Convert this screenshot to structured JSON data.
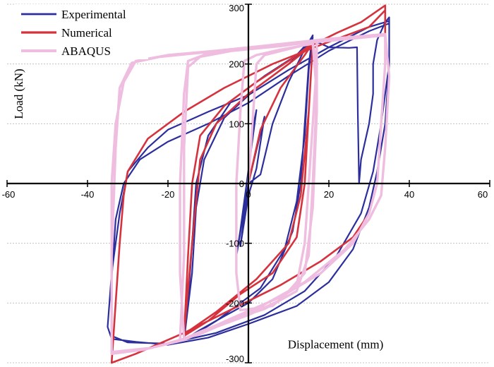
{
  "chart_data": {
    "type": "line",
    "xlabel": "Displacement (mm)",
    "ylabel": "Load (kN)",
    "xlim": [
      -60,
      60
    ],
    "ylim": [
      -300,
      300
    ],
    "x_ticks": [
      -60,
      -40,
      -20,
      0,
      20,
      40,
      60
    ],
    "y_ticks": [
      -300,
      -200,
      -100,
      0,
      100,
      200,
      300
    ],
    "x_tick_labels": [
      "-60",
      "-40",
      "-20",
      "0",
      "20",
      "40",
      "60"
    ],
    "y_tick_labels": [
      "-300",
      "-200",
      "-100",
      "0",
      "100",
      "200",
      "300"
    ],
    "grid": "horizontal dashed",
    "legend_position": "top-left",
    "series": [
      {
        "name": "Experimental",
        "color": "#2b2e9c",
        "width": 2.2,
        "points": [
          [
            0,
            0
          ],
          [
            1,
            90
          ],
          [
            2,
            123
          ],
          [
            -2,
            -78
          ],
          [
            -3,
            -122
          ],
          [
            0,
            0
          ],
          [
            4,
            112
          ],
          [
            2,
            25
          ],
          [
            0,
            -20
          ],
          [
            -2,
            -105
          ],
          [
            0,
            0
          ],
          [
            3,
            15
          ],
          [
            6,
            100
          ],
          [
            10,
            170
          ],
          [
            14,
            225
          ],
          [
            16,
            248
          ],
          [
            15,
            200
          ],
          [
            14,
            100
          ],
          [
            13,
            0
          ],
          [
            11,
            -80
          ],
          [
            6,
            -160
          ],
          [
            0,
            -200
          ],
          [
            -6,
            -222
          ],
          [
            -12,
            -245
          ],
          [
            -16,
            -262
          ],
          [
            -15,
            -200
          ],
          [
            -14,
            -100
          ],
          [
            -13,
            0
          ],
          [
            -10,
            80
          ],
          [
            -4,
            140
          ],
          [
            4,
            180
          ],
          [
            12,
            215
          ],
          [
            16,
            245
          ],
          [
            15,
            190
          ],
          [
            14,
            80
          ],
          [
            12,
            -30
          ],
          [
            9,
            -110
          ],
          [
            3,
            -175
          ],
          [
            -8,
            -230
          ],
          [
            -14,
            -255
          ],
          [
            -16,
            -262
          ],
          [
            -14,
            -150
          ],
          [
            -13,
            -40
          ],
          [
            -11,
            40
          ],
          [
            -6,
            110
          ],
          [
            2,
            160
          ],
          [
            10,
            200
          ],
          [
            16,
            240
          ],
          [
            20,
            228
          ],
          [
            25,
            227
          ],
          [
            27,
            228
          ],
          [
            27.2,
            120
          ],
          [
            27.5,
            0
          ],
          [
            28,
            40
          ],
          [
            30,
            100
          ],
          [
            31,
            150
          ],
          [
            31,
            200
          ],
          [
            32,
            240
          ],
          [
            34,
            270
          ],
          [
            35,
            278
          ],
          [
            35,
            200
          ],
          [
            34,
            100
          ],
          [
            32,
            20
          ],
          [
            30,
            -40
          ],
          [
            26,
            -110
          ],
          [
            20,
            -165
          ],
          [
            12,
            -205
          ],
          [
            0,
            -235
          ],
          [
            -10,
            -258
          ],
          [
            -20,
            -270
          ],
          [
            -28,
            -265
          ],
          [
            -34,
            -260
          ],
          [
            -35,
            -240
          ],
          [
            -34,
            -150
          ],
          [
            -32,
            -50
          ],
          [
            -30,
            20
          ],
          [
            -25,
            60
          ],
          [
            -20,
            90
          ],
          [
            -10,
            120
          ],
          [
            0,
            148
          ],
          [
            10,
            190
          ],
          [
            20,
            228
          ],
          [
            30,
            262
          ],
          [
            35,
            272
          ],
          [
            35,
            200
          ],
          [
            33,
            100
          ],
          [
            31,
            20
          ],
          [
            28,
            -50
          ],
          [
            22,
            -120
          ],
          [
            14,
            -180
          ],
          [
            4,
            -220
          ],
          [
            -8,
            -250
          ],
          [
            -20,
            -268
          ],
          [
            -30,
            -266
          ],
          [
            -34,
            -255
          ],
          [
            -34,
            -160
          ],
          [
            -33,
            -60
          ],
          [
            -31,
            0
          ],
          [
            -27,
            40
          ],
          [
            -20,
            70
          ],
          [
            -10,
            100
          ],
          [
            0,
            135
          ],
          [
            10,
            180
          ],
          [
            20,
            222
          ],
          [
            30,
            255
          ],
          [
            35,
            268
          ]
        ]
      },
      {
        "name": "Numerical",
        "color": "#d6323e",
        "width": 2.6,
        "points": [
          [
            0,
            0
          ],
          [
            3,
            90
          ],
          [
            8,
            160
          ],
          [
            14,
            215
          ],
          [
            16,
            235
          ],
          [
            15,
            120
          ],
          [
            14,
            0
          ],
          [
            12,
            -90
          ],
          [
            6,
            -150
          ],
          [
            -2,
            -185
          ],
          [
            -10,
            -230
          ],
          [
            -16,
            -255
          ],
          [
            -15,
            -120
          ],
          [
            -14,
            0
          ],
          [
            -12,
            80
          ],
          [
            -6,
            130
          ],
          [
            2,
            170
          ],
          [
            10,
            205
          ],
          [
            16,
            235
          ],
          [
            15,
            120
          ],
          [
            13,
            -20
          ],
          [
            10,
            -100
          ],
          [
            2,
            -160
          ],
          [
            -8,
            -215
          ],
          [
            -16,
            -252
          ],
          [
            -14,
            -100
          ],
          [
            -12,
            40
          ],
          [
            -8,
            100
          ],
          [
            0,
            150
          ],
          [
            10,
            200
          ],
          [
            16,
            232
          ],
          [
            22,
            252
          ],
          [
            28,
            270
          ],
          [
            34,
            298
          ],
          [
            34,
            200
          ],
          [
            33,
            100
          ],
          [
            32,
            0
          ],
          [
            30,
            -50
          ],
          [
            26,
            -90
          ],
          [
            18,
            -130
          ],
          [
            8,
            -170
          ],
          [
            -4,
            -210
          ],
          [
            -16,
            -250
          ],
          [
            -28,
            -285
          ],
          [
            -34,
            -300
          ],
          [
            -33,
            -200
          ],
          [
            -32,
            -100
          ],
          [
            -31,
            -20
          ],
          [
            -30,
            20
          ],
          [
            -25,
            75
          ],
          [
            -16,
            120
          ],
          [
            -6,
            160
          ],
          [
            6,
            200
          ],
          [
            18,
            232
          ],
          [
            30,
            262
          ],
          [
            34,
            290
          ]
        ]
      },
      {
        "name": "ABAQUS",
        "color": "#efbddf",
        "width": 3.4,
        "points": [
          [
            0,
            0
          ],
          [
            1,
            100
          ],
          [
            2,
            200
          ],
          [
            4,
            215
          ],
          [
            10,
            225
          ],
          [
            16,
            235
          ],
          [
            17,
            200
          ],
          [
            16,
            100
          ],
          [
            15,
            0
          ],
          [
            14,
            -100
          ],
          [
            12,
            -170
          ],
          [
            6,
            -205
          ],
          [
            -2,
            -212
          ],
          [
            -3,
            -150
          ],
          [
            -3,
            0
          ],
          [
            -2,
            120
          ],
          [
            -1,
            205
          ],
          [
            2,
            215
          ],
          [
            8,
            224
          ],
          [
            16,
            234
          ],
          [
            17,
            150
          ],
          [
            16,
            0
          ],
          [
            15,
            -120
          ],
          [
            12,
            -180
          ],
          [
            4,
            -210
          ],
          [
            -6,
            -232
          ],
          [
            -12,
            -248
          ],
          [
            -16,
            -260
          ],
          [
            -17,
            -150
          ],
          [
            -17,
            0
          ],
          [
            -16,
            150
          ],
          [
            -15,
            205
          ],
          [
            -10,
            218
          ],
          [
            0,
            225
          ],
          [
            10,
            232
          ],
          [
            17,
            238
          ],
          [
            17,
            120
          ],
          [
            16,
            -40
          ],
          [
            14,
            -150
          ],
          [
            8,
            -195
          ],
          [
            0,
            -220
          ],
          [
            -10,
            -245
          ],
          [
            -17,
            -262
          ],
          [
            -16,
            -120
          ],
          [
            -16,
            60
          ],
          [
            -15,
            195
          ],
          [
            -12,
            212
          ],
          [
            -4,
            222
          ],
          [
            8,
            230
          ],
          [
            17,
            238
          ],
          [
            22,
            242
          ],
          [
            28,
            246
          ],
          [
            34,
            250
          ],
          [
            34,
            200
          ],
          [
            33,
            100
          ],
          [
            32,
            0
          ],
          [
            30,
            -50
          ],
          [
            26,
            -100
          ],
          [
            18,
            -150
          ],
          [
            8,
            -190
          ],
          [
            -4,
            -225
          ],
          [
            -16,
            -262
          ],
          [
            -26,
            -278
          ],
          [
            -34,
            -285
          ],
          [
            -34,
            -150
          ],
          [
            -34,
            0
          ],
          [
            -33,
            100
          ],
          [
            -31,
            170
          ],
          [
            -28,
            205
          ],
          [
            -20,
            215
          ],
          [
            -8,
            222
          ],
          [
            6,
            232
          ],
          [
            20,
            242
          ],
          [
            34,
            250
          ],
          [
            35,
            180
          ],
          [
            34,
            60
          ],
          [
            33,
            -20
          ],
          [
            30,
            -60
          ],
          [
            24,
            -110
          ],
          [
            14,
            -165
          ],
          [
            2,
            -210
          ],
          [
            -12,
            -252
          ],
          [
            -24,
            -275
          ],
          [
            -34,
            -282
          ],
          [
            -34,
            -120
          ],
          [
            -33,
            60
          ],
          [
            -32,
            160
          ],
          [
            -29,
            202
          ],
          [
            -22,
            212
          ],
          [
            -10,
            220
          ],
          [
            6,
            230
          ],
          [
            22,
            240
          ],
          [
            34,
            248
          ]
        ]
      }
    ]
  }
}
